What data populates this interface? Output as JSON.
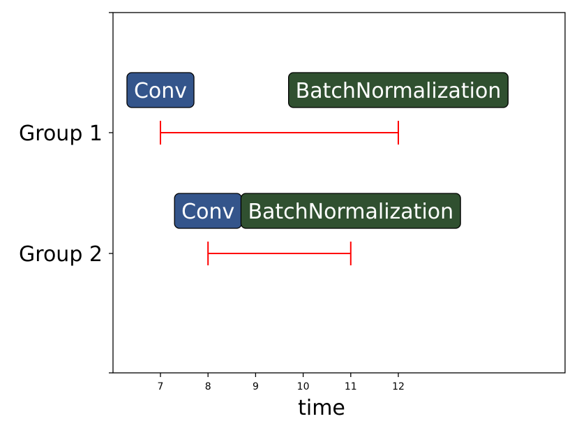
{
  "chart_data": {
    "type": "range",
    "xlabel": "time",
    "x_ticks": [
      7,
      8,
      9,
      10,
      11,
      12
    ],
    "xlim": [
      6,
      15.6
    ],
    "categories": [
      "Group 1",
      "Group 2"
    ],
    "grid": false,
    "range_color": "#ff0000",
    "series": [
      {
        "label": "Group 1",
        "start": 7,
        "end": 12,
        "operations": [
          {
            "name": "Conv",
            "x": 7,
            "color": "#34558b"
          },
          {
            "name": "BatchNormalization",
            "x": 12,
            "color": "#305030"
          }
        ]
      },
      {
        "label": "Group 2",
        "start": 8,
        "end": 11,
        "operations": [
          {
            "name": "Conv",
            "x": 8,
            "color": "#34558b"
          },
          {
            "name": "BatchNormalization",
            "x": 11,
            "color": "#305030"
          }
        ]
      }
    ]
  }
}
